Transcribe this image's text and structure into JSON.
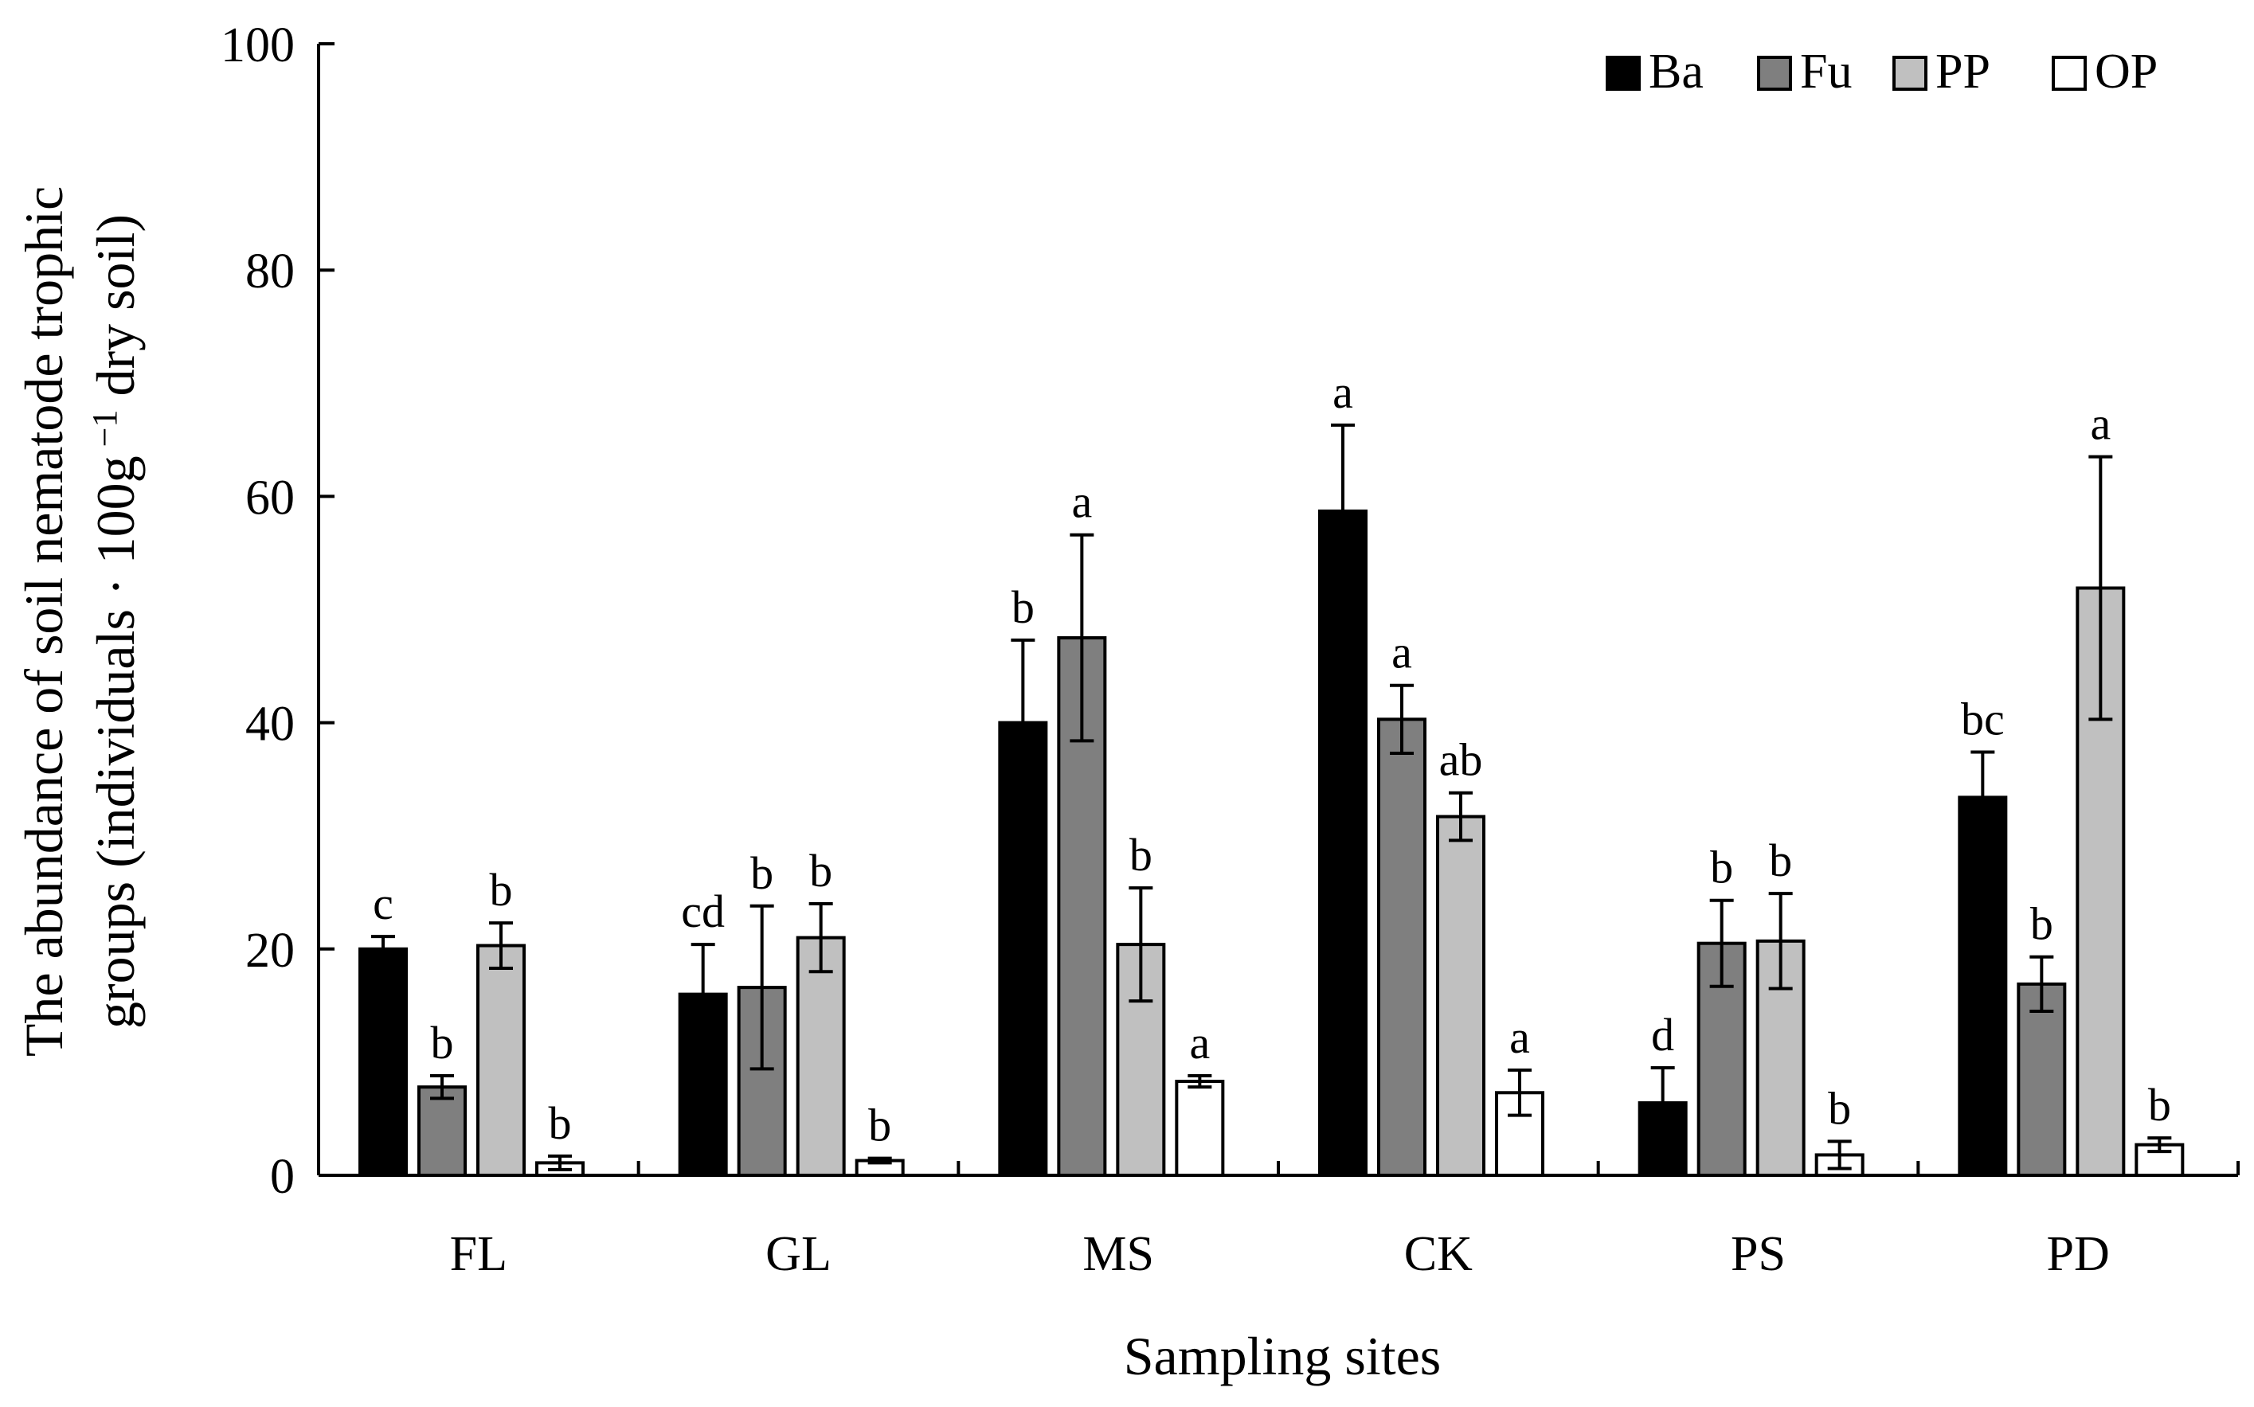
{
  "chart_data": {
    "type": "bar",
    "title": "",
    "xlabel": "Sampling sites",
    "ylabel_line1": "The abundance of soil nematode  trophic",
    "ylabel_line2_pre": "groups (individuals · 100g",
    "ylabel_sup": " −1",
    "ylabel_line2_post": " dry soil)",
    "ylim": [
      0,
      100
    ],
    "yticks": [
      0,
      20,
      40,
      60,
      80,
      100
    ],
    "ytick_labels": [
      "0",
      "20",
      "40",
      "60",
      "80",
      "100"
    ],
    "grid": false,
    "legend_position": "top-right",
    "categories": [
      "FL",
      "GL",
      "MS",
      "CK",
      "PS",
      "PD"
    ],
    "series": [
      {
        "name": "Ba",
        "color": "#000000",
        "values": [
          20.0,
          16.0,
          40.0,
          58.7,
          6.4,
          33.4
        ],
        "errors": [
          1.1,
          4.4,
          7.3,
          7.6,
          3.1,
          4.0
        ],
        "sig": [
          "c",
          "cd",
          "b",
          "a",
          "d",
          "bc"
        ]
      },
      {
        "name": "Fu",
        "color": "#7f7f7f",
        "values": [
          7.8,
          16.6,
          47.5,
          40.3,
          20.5,
          16.9
        ],
        "errors": [
          1.0,
          7.2,
          9.1,
          3.0,
          3.8,
          2.4
        ],
        "sig": [
          "b",
          "b",
          "a",
          "a",
          "b",
          "b"
        ]
      },
      {
        "name": "PP",
        "color": "#c0c0c0",
        "values": [
          20.3,
          21.0,
          20.4,
          31.7,
          20.7,
          51.9
        ],
        "errors": [
          2.0,
          3.0,
          5.0,
          2.1,
          4.2,
          11.6
        ],
        "sig": [
          "b",
          "b",
          "b",
          "ab",
          "b",
          "a"
        ]
      },
      {
        "name": "OP",
        "color": "#ffffff",
        "values": [
          1.1,
          1.3,
          8.3,
          7.3,
          1.8,
          2.7
        ],
        "errors": [
          0.6,
          0.2,
          0.5,
          2.0,
          1.2,
          0.6
        ],
        "sig": [
          "b",
          "b",
          "a",
          "a",
          "b",
          "b"
        ]
      }
    ]
  }
}
